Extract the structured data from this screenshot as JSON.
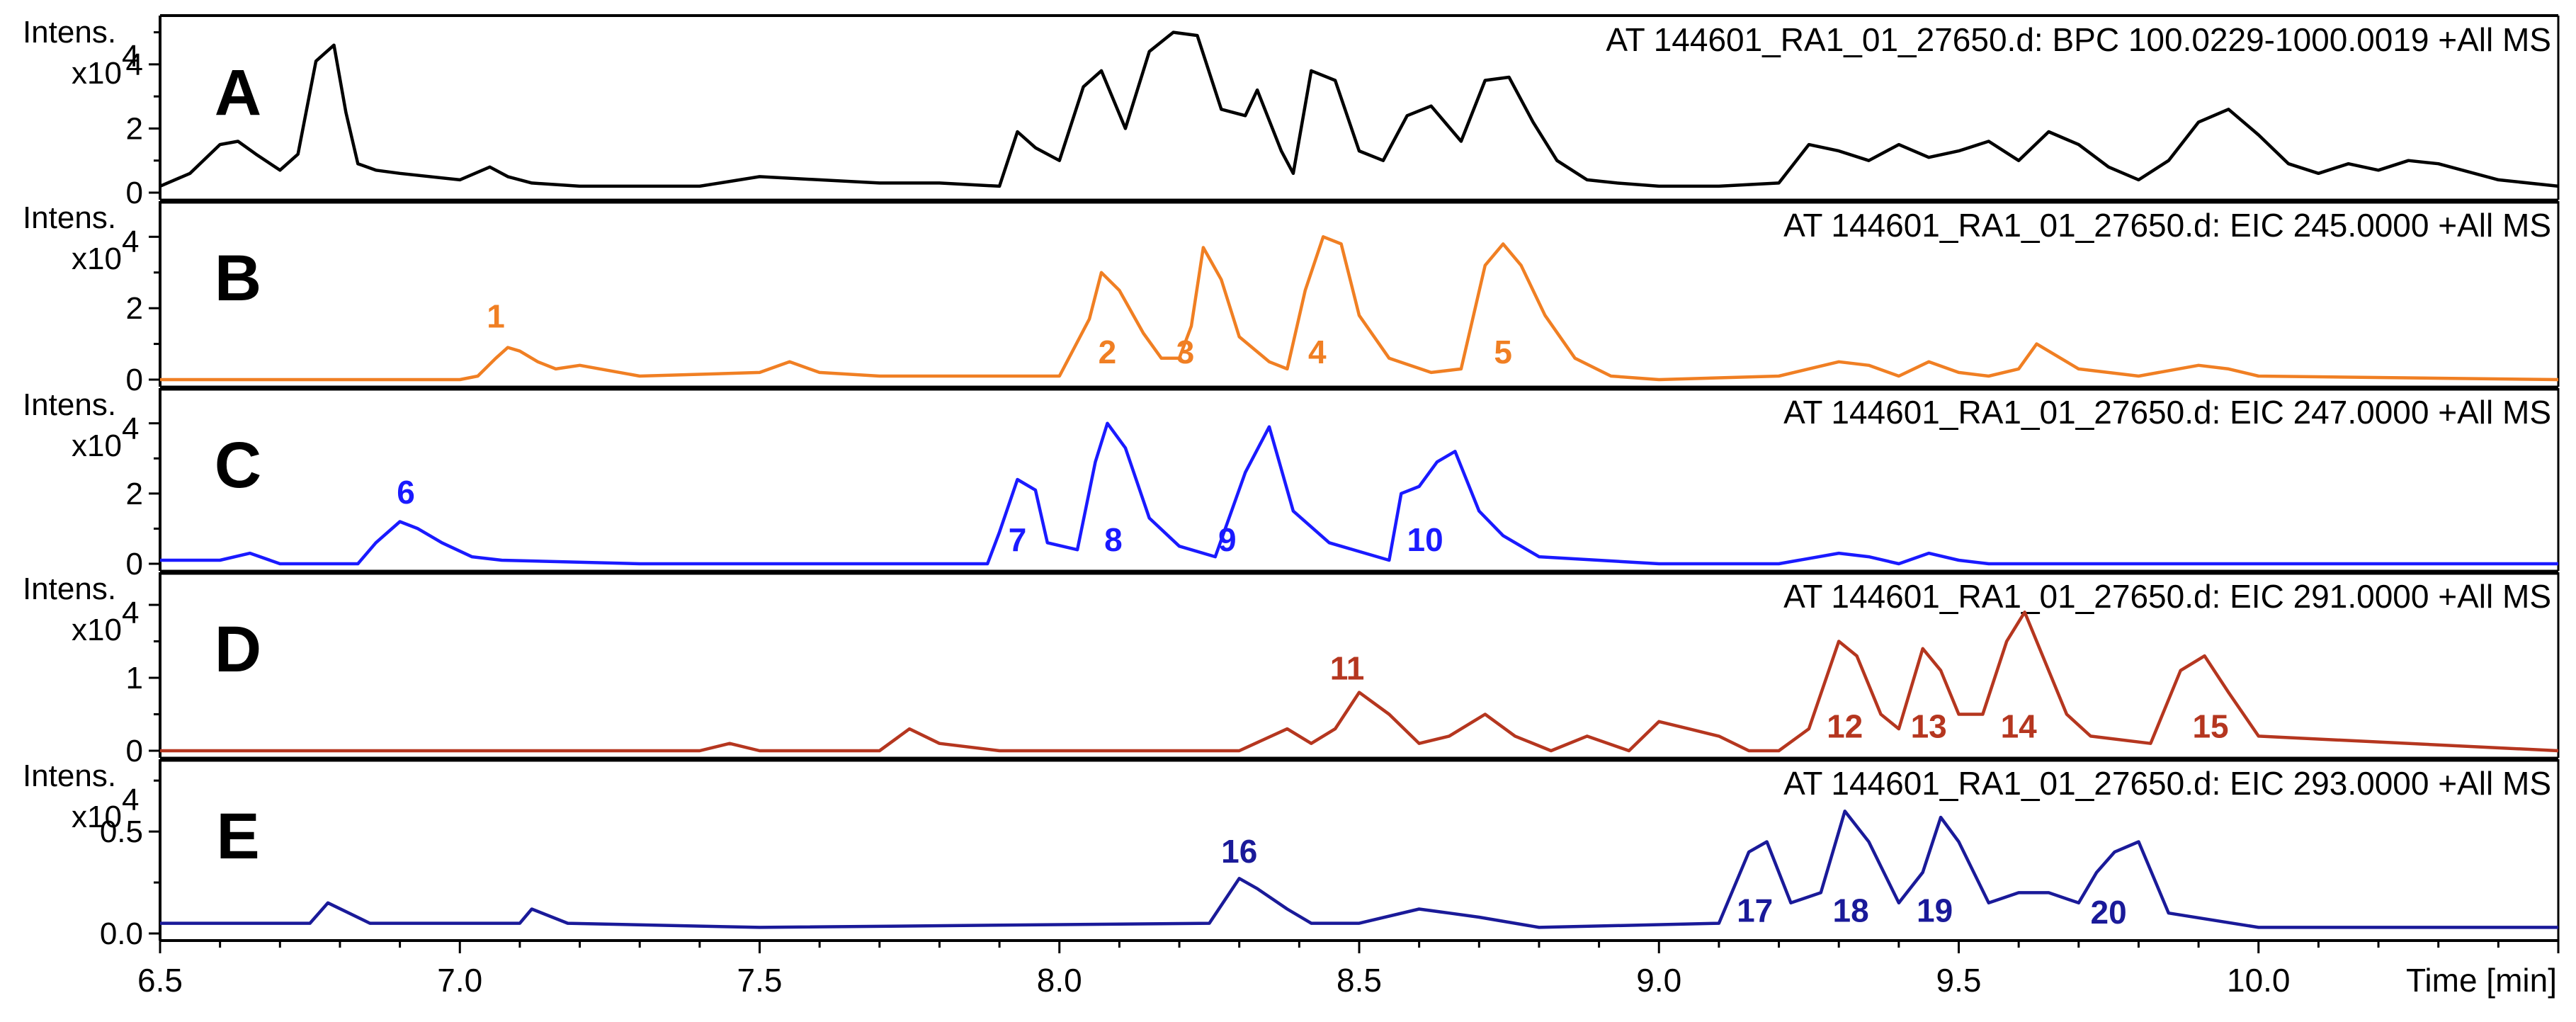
{
  "chart_data": {
    "type": "line",
    "x_label": "Time [min]",
    "xlim": [
      6.5,
      10.5
    ],
    "x_ticks": [
      "6.5",
      "7.0",
      "7.5",
      "8.0",
      "8.5",
      "9.0",
      "9.5",
      "10.0"
    ],
    "y_unit_label": "Intens.",
    "y_scale_label": "x10",
    "y_scale_exp": "4",
    "panels": [
      {
        "letter": "A",
        "title": "AT 144601_RA1_01_27650.d: BPC 100.0229-1000.0019 +All MS",
        "color": "#000000",
        "ylim": [
          0,
          5.3
        ],
        "y_ticks": [
          0,
          2,
          4
        ],
        "y_tick_labels": [
          "0",
          "2",
          "4"
        ],
        "x": [
          6.5,
          6.55,
          6.6,
          6.63,
          6.66,
          6.7,
          6.73,
          6.76,
          6.79,
          6.81,
          6.83,
          6.86,
          6.9,
          7.0,
          7.05,
          7.08,
          7.12,
          7.2,
          7.4,
          7.5,
          7.6,
          7.7,
          7.8,
          7.9,
          7.93,
          7.96,
          8.0,
          8.04,
          8.07,
          8.11,
          8.15,
          8.19,
          8.23,
          8.27,
          8.31,
          8.33,
          8.37,
          8.39,
          8.42,
          8.46,
          8.5,
          8.54,
          8.58,
          8.62,
          8.67,
          8.71,
          8.75,
          8.79,
          8.83,
          8.88,
          8.93,
          9.0,
          9.1,
          9.2,
          9.25,
          9.3,
          9.35,
          9.4,
          9.45,
          9.5,
          9.55,
          9.6,
          9.65,
          9.7,
          9.75,
          9.8,
          9.85,
          9.9,
          9.95,
          10.0,
          10.05,
          10.1,
          10.15,
          10.2,
          10.25,
          10.3,
          10.4,
          10.5
        ],
        "y": [
          0.2,
          0.6,
          1.5,
          1.6,
          1.2,
          0.7,
          1.2,
          4.1,
          4.6,
          2.5,
          0.9,
          0.7,
          0.6,
          0.4,
          0.8,
          0.5,
          0.3,
          0.2,
          0.2,
          0.5,
          0.4,
          0.3,
          0.3,
          0.2,
          1.9,
          1.4,
          1.0,
          3.3,
          3.8,
          2.0,
          4.4,
          5.0,
          4.9,
          2.6,
          2.4,
          3.2,
          1.3,
          0.6,
          3.8,
          3.5,
          1.3,
          1.0,
          2.4,
          2.7,
          1.6,
          3.5,
          3.6,
          2.2,
          1.0,
          0.4,
          0.3,
          0.2,
          0.2,
          0.3,
          1.5,
          1.3,
          1.0,
          1.5,
          1.1,
          1.3,
          1.6,
          1.0,
          1.9,
          1.5,
          0.8,
          0.4,
          1.0,
          2.2,
          2.6,
          1.8,
          0.9,
          0.6,
          0.9,
          0.7,
          1.0,
          0.9,
          0.4,
          0.2
        ],
        "peak_labels": []
      },
      {
        "letter": "B",
        "title": "AT 144601_RA1_01_27650.d: EIC 245.0000 +All MS",
        "color": "#f07f23",
        "ylim": [
          0,
          4.8
        ],
        "y_ticks": [
          0,
          2
        ],
        "y_tick_labels": [
          "0",
          "2"
        ],
        "x": [
          6.5,
          6.9,
          7.0,
          7.03,
          7.06,
          7.08,
          7.1,
          7.13,
          7.16,
          7.2,
          7.3,
          7.5,
          7.55,
          7.6,
          7.7,
          8.0,
          8.05,
          8.07,
          8.1,
          8.14,
          8.17,
          8.2,
          8.22,
          8.24,
          8.27,
          8.3,
          8.35,
          8.38,
          8.41,
          8.44,
          8.47,
          8.5,
          8.55,
          8.62,
          8.67,
          8.71,
          8.74,
          8.77,
          8.81,
          8.86,
          8.92,
          9.0,
          9.2,
          9.3,
          9.35,
          9.4,
          9.45,
          9.5,
          9.55,
          9.6,
          9.63,
          9.7,
          9.8,
          9.9,
          9.95,
          10.0,
          10.5
        ],
        "y": [
          0.0,
          0.0,
          0.0,
          0.1,
          0.6,
          0.9,
          0.8,
          0.5,
          0.3,
          0.4,
          0.1,
          0.2,
          0.5,
          0.2,
          0.1,
          0.1,
          1.7,
          3.0,
          2.5,
          1.3,
          0.6,
          0.6,
          1.5,
          3.7,
          2.8,
          1.2,
          0.5,
          0.3,
          2.5,
          4.0,
          3.8,
          1.8,
          0.6,
          0.2,
          0.3,
          3.2,
          3.8,
          3.2,
          1.8,
          0.6,
          0.1,
          0.0,
          0.1,
          0.5,
          0.4,
          0.1,
          0.5,
          0.2,
          0.1,
          0.3,
          1.0,
          0.3,
          0.1,
          0.4,
          0.3,
          0.1,
          0.0
        ],
        "peak_labels": [
          {
            "x": 7.06,
            "y": 1.3,
            "text": "1"
          },
          {
            "x": 8.08,
            "y": 0.3,
            "text": "2"
          },
          {
            "x": 8.21,
            "y": 0.3,
            "text": "3"
          },
          {
            "x": 8.43,
            "y": 0.3,
            "text": "4"
          },
          {
            "x": 8.74,
            "y": 0.3,
            "text": "5"
          }
        ]
      },
      {
        "letter": "C",
        "title": "AT 144601_RA1_01_27650.d: EIC 247.0000 +All MS",
        "color": "#1a1aff",
        "ylim": [
          0,
          4.8
        ],
        "y_ticks": [
          0,
          2
        ],
        "y_tick_labels": [
          "0",
          "2"
        ],
        "x": [
          6.5,
          6.6,
          6.65,
          6.7,
          6.83,
          6.86,
          6.9,
          6.93,
          6.97,
          7.02,
          7.07,
          7.3,
          7.88,
          7.9,
          7.93,
          7.96,
          7.98,
          8.03,
          8.06,
          8.08,
          8.11,
          8.15,
          8.2,
          8.26,
          8.31,
          8.35,
          8.39,
          8.45,
          8.55,
          8.57,
          8.6,
          8.63,
          8.66,
          8.7,
          8.74,
          8.8,
          9.0,
          9.2,
          9.3,
          9.35,
          9.4,
          9.45,
          9.5,
          9.55,
          10.0,
          10.5
        ],
        "y": [
          0.1,
          0.1,
          0.3,
          0.0,
          0.0,
          0.6,
          1.2,
          1.0,
          0.6,
          0.2,
          0.1,
          0.0,
          0.0,
          0.9,
          2.4,
          2.1,
          0.6,
          0.4,
          2.9,
          4.0,
          3.3,
          1.3,
          0.5,
          0.2,
          2.6,
          3.9,
          1.5,
          0.6,
          0.1,
          2.0,
          2.2,
          2.9,
          3.2,
          1.5,
          0.8,
          0.2,
          0.0,
          0.0,
          0.3,
          0.2,
          0.0,
          0.3,
          0.1,
          0.0,
          0.0,
          0.0
        ],
        "peak_labels": [
          {
            "x": 6.91,
            "y": 1.55,
            "text": "6"
          },
          {
            "x": 7.93,
            "y": 0.2,
            "text": "7"
          },
          {
            "x": 8.09,
            "y": 0.2,
            "text": "8"
          },
          {
            "x": 8.28,
            "y": 0.2,
            "text": "9"
          },
          {
            "x": 8.61,
            "y": 0.2,
            "text": "10"
          }
        ]
      },
      {
        "letter": "D",
        "title": "AT 144601_RA1_01_27650.d: EIC 291.0000 +All MS",
        "color": "#b5361f",
        "ylim": [
          0,
          2.35
        ],
        "y_ticks": [
          0,
          1
        ],
        "y_tick_labels": [
          "0",
          "1"
        ],
        "x": [
          6.5,
          7.4,
          7.45,
          7.5,
          7.7,
          7.75,
          7.8,
          7.9,
          8.3,
          8.38,
          8.42,
          8.46,
          8.5,
          8.55,
          8.6,
          8.65,
          8.71,
          8.76,
          8.82,
          8.88,
          8.95,
          9.0,
          9.05,
          9.1,
          9.15,
          9.2,
          9.25,
          9.3,
          9.33,
          9.37,
          9.4,
          9.44,
          9.47,
          9.5,
          9.54,
          9.58,
          9.61,
          9.64,
          9.68,
          9.72,
          9.82,
          9.87,
          9.91,
          9.95,
          10.0,
          10.5
        ],
        "y": [
          0.0,
          0.0,
          0.1,
          0.0,
          0.0,
          0.3,
          0.1,
          0.0,
          0.0,
          0.3,
          0.1,
          0.3,
          0.8,
          0.5,
          0.1,
          0.2,
          0.5,
          0.2,
          0.0,
          0.2,
          0.0,
          0.4,
          0.3,
          0.2,
          0.0,
          0.0,
          0.3,
          1.5,
          1.3,
          0.5,
          0.3,
          1.4,
          1.1,
          0.5,
          0.5,
          1.5,
          1.9,
          1.3,
          0.5,
          0.2,
          0.1,
          1.1,
          1.3,
          0.8,
          0.2,
          0.0
        ],
        "peak_labels": [
          {
            "x": 8.48,
            "y": 0.9,
            "text": "11"
          },
          {
            "x": 9.31,
            "y": 0.1,
            "text": "12"
          },
          {
            "x": 9.45,
            "y": 0.1,
            "text": "13"
          },
          {
            "x": 9.6,
            "y": 0.1,
            "text": "14"
          },
          {
            "x": 9.92,
            "y": 0.1,
            "text": "15"
          }
        ]
      },
      {
        "letter": "E",
        "title": "AT 144601_RA1_01_27650.d: EIC 293.0000 +All MS",
        "color": "#1a1a99",
        "ylim": [
          0,
          0.82
        ],
        "y_ticks": [
          0.0,
          0.5
        ],
        "y_tick_labels": [
          "0.0",
          "0.5"
        ],
        "x": [
          6.5,
          6.75,
          6.78,
          6.85,
          7.1,
          7.12,
          7.18,
          7.5,
          8.25,
          8.3,
          8.33,
          8.38,
          8.42,
          8.5,
          8.6,
          8.65,
          8.7,
          8.8,
          9.1,
          9.15,
          9.18,
          9.22,
          9.27,
          9.31,
          9.35,
          9.4,
          9.44,
          9.47,
          9.5,
          9.55,
          9.6,
          9.65,
          9.7,
          9.73,
          9.76,
          9.8,
          9.85,
          10.0,
          10.5
        ],
        "y": [
          0.05,
          0.05,
          0.15,
          0.05,
          0.05,
          0.12,
          0.05,
          0.03,
          0.05,
          0.27,
          0.22,
          0.12,
          0.05,
          0.05,
          0.12,
          0.1,
          0.08,
          0.03,
          0.05,
          0.4,
          0.45,
          0.15,
          0.2,
          0.6,
          0.45,
          0.15,
          0.3,
          0.57,
          0.45,
          0.15,
          0.2,
          0.2,
          0.15,
          0.3,
          0.4,
          0.45,
          0.1,
          0.03,
          0.03
        ],
        "peak_labels": [
          {
            "x": 8.3,
            "y": 0.32,
            "text": "16"
          },
          {
            "x": 9.16,
            "y": 0.03,
            "text": "17"
          },
          {
            "x": 9.32,
            "y": 0.03,
            "text": "18"
          },
          {
            "x": 9.46,
            "y": 0.03,
            "text": "19"
          },
          {
            "x": 9.75,
            "y": 0.02,
            "text": "20"
          }
        ]
      }
    ]
  }
}
